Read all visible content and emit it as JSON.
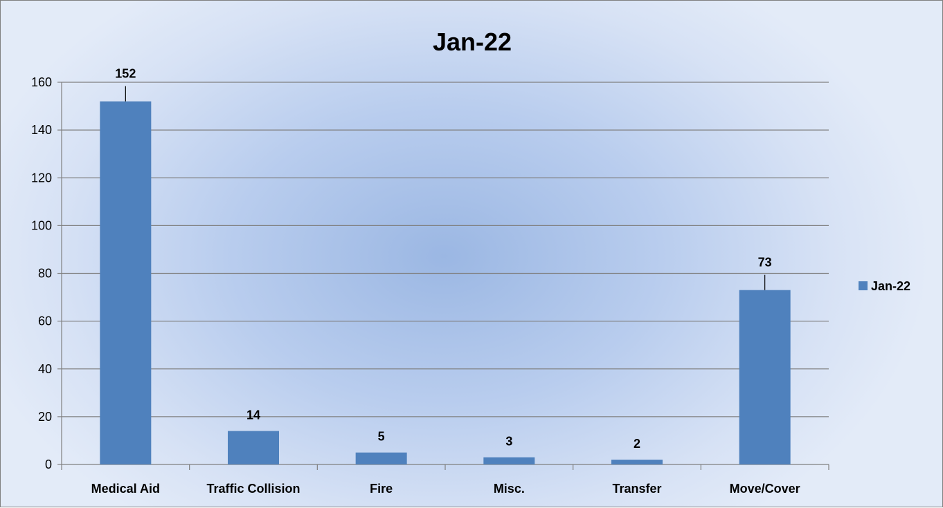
{
  "chart_data": {
    "type": "bar",
    "title": "Jan-22",
    "categories": [
      "Medical Aid",
      "Traffic Collision",
      "Fire",
      "Misc.",
      "Transfer",
      "Move/Cover"
    ],
    "series": [
      {
        "name": "Jan-22",
        "values": [
          152,
          14,
          5,
          3,
          2,
          73
        ],
        "color": "#4f81bd"
      }
    ],
    "xlabel": "",
    "ylabel": "",
    "ylim": [
      0,
      160
    ],
    "yticks": [
      0,
      20,
      40,
      60,
      80,
      100,
      120,
      140,
      160
    ],
    "grid": true,
    "legend_position": "right",
    "data_labels": true,
    "leader_lines_on": [
      "Medical Aid",
      "Move/Cover"
    ]
  }
}
